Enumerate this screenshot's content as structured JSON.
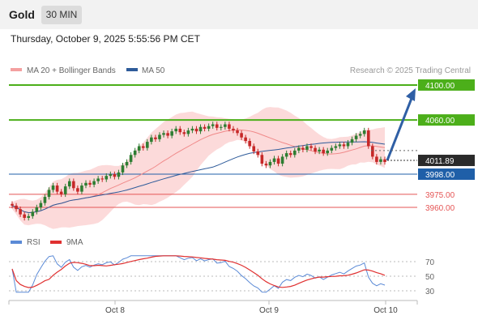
{
  "header": {
    "symbol": "Gold",
    "timeframe": "30 MIN",
    "datetime": "Thursday, October 9, 2025 5:55:56 PM CET"
  },
  "legend": [
    {
      "label": "MA 20 + Bollinger Bands",
      "color": "#f4a0a0"
    },
    {
      "label": "MA 50",
      "color": "#2e5b9a"
    }
  ],
  "copyright": "Research © 2025 Trading Central",
  "rsi_legend": [
    {
      "label": "RSI",
      "color": "#5b8ad6"
    },
    {
      "label": "9MA",
      "color": "#e03030"
    }
  ],
  "colors": {
    "up": "#2e7d32",
    "down": "#c62828",
    "resistance": "#4caf1a",
    "pivot": "#1f5fa8",
    "support": "#e55555",
    "arrow": "#2f5fa5",
    "bands": "#fbd4d4"
  },
  "chart_data": {
    "type": "candlestick",
    "ylim": [
      3940,
      4110
    ],
    "x_labels": [
      "Oct 8",
      "Oct 9",
      "Oct 10"
    ],
    "current_price": "4011.89",
    "levels": [
      {
        "label": "4100.00",
        "value": 4100,
        "kind": "resistance"
      },
      {
        "label": "4060.00",
        "value": 4060,
        "kind": "resistance"
      },
      {
        "label": "3998.00",
        "value": 3998,
        "kind": "pivot"
      },
      {
        "label": "3975.00",
        "value": 3975,
        "kind": "support"
      },
      {
        "label": "3960.00",
        "value": 3960,
        "kind": "support"
      }
    ],
    "forecast": {
      "from": 4012,
      "to": 4100
    },
    "closes": [
      3962,
      3958,
      3952,
      3948,
      3950,
      3955,
      3960,
      3965,
      3972,
      3980,
      3985,
      3978,
      3975,
      3984,
      3990,
      3982,
      3978,
      3985,
      3988,
      3986,
      3990,
      3993,
      3992,
      3996,
      3998,
      3995,
      4000,
      4008,
      4012,
      4020,
      4025,
      4030,
      4028,
      4035,
      4040,
      4038,
      4043,
      4045,
      4042,
      4047,
      4050,
      4046,
      4044,
      4048,
      4050,
      4047,
      4052,
      4050,
      4053,
      4055,
      4051,
      4052,
      4055,
      4050,
      4048,
      4045,
      4040,
      4036,
      4030,
      4024,
      4020,
      4010,
      4008,
      4012,
      4016,
      4010,
      4018,
      4022,
      4020,
      4025,
      4028,
      4026,
      4030,
      4028,
      4024,
      4026,
      4022,
      4025,
      4028,
      4030,
      4032,
      4030,
      4034,
      4038,
      4042,
      4044,
      4048,
      4030,
      4018,
      4012,
      4015,
      4011.89
    ],
    "ma20_last": 4028,
    "ma50_last": 4028,
    "rsi_axis": [
      70,
      50,
      30
    ],
    "rsi_last": 45,
    "rsi_ma_last": 50
  }
}
